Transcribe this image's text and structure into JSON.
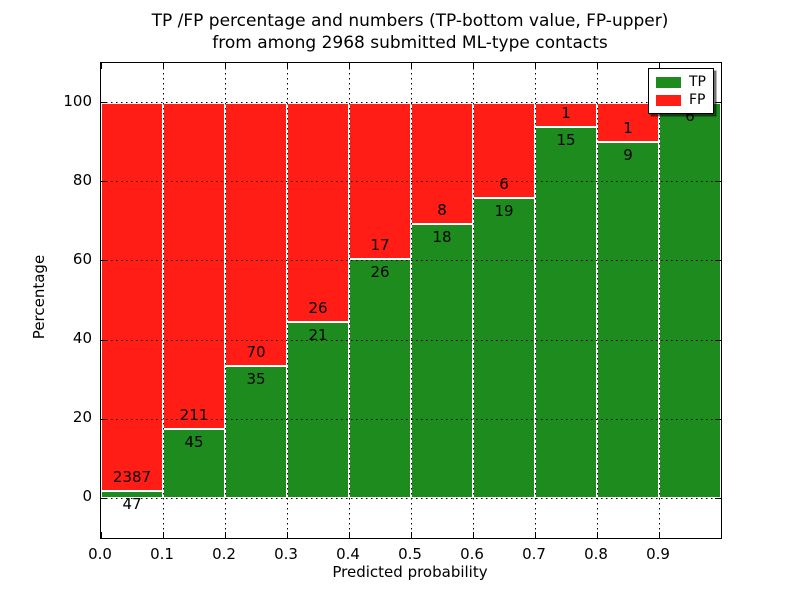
{
  "title": {
    "line1": "TP /FP percentage and numbers (TP-bottom value, FP-upper)",
    "line2": "from among 2968 submitted ML-type contacts"
  },
  "chart_data": {
    "type": "bar",
    "stacked": true,
    "normalized_to_percent": true,
    "title": "TP /FP percentage and numbers (TP-bottom value, FP-upper) from among 2968 submitted ML-type contacts",
    "total_submitted_contacts": 2968,
    "xlabel": "Predicted probability",
    "ylabel": "Percentage",
    "xlim": [
      0.0,
      1.0
    ],
    "ylim": [
      -10,
      110
    ],
    "grid": true,
    "bin_width": 0.1,
    "bin_starts": [
      0.0,
      0.1,
      0.2,
      0.3,
      0.4,
      0.5,
      0.6,
      0.7,
      0.8,
      0.9
    ],
    "x_tick_labels": [
      "0.0",
      "0.1",
      "0.2",
      "0.3",
      "0.4",
      "0.5",
      "0.6",
      "0.7",
      "0.8",
      "0.9"
    ],
    "y_tick_values": [
      0,
      20,
      40,
      60,
      80,
      100
    ],
    "series": [
      {
        "name": "TP",
        "color": "#1e8b1e",
        "counts": [
          47,
          45,
          35,
          21,
          26,
          18,
          19,
          15,
          9,
          6
        ]
      },
      {
        "name": "FP",
        "color": "#ff1d15",
        "counts": [
          2387,
          211,
          70,
          26,
          17,
          8,
          6,
          1,
          1,
          0
        ]
      }
    ],
    "tp_percent_per_bin": [
      1.93,
      17.58,
      33.33,
      44.68,
      60.47,
      69.23,
      76.0,
      93.75,
      90.0,
      100.0
    ],
    "legend": {
      "position": "upper right",
      "entries": [
        {
          "label": "TP",
          "color": "#1e8b1e"
        },
        {
          "label": "FP",
          "color": "#ff1d15"
        }
      ]
    }
  }
}
